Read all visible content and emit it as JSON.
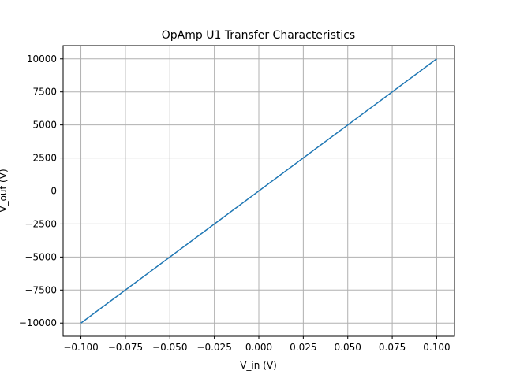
{
  "chart_data": {
    "type": "line",
    "title": "OpAmp U1 Transfer Characteristics",
    "xlabel": "V_in (V)",
    "ylabel": "V_out (V)",
    "xlim": [
      -0.11,
      0.11
    ],
    "ylim": [
      -11000,
      11000
    ],
    "x_ticks": [
      -0.1,
      -0.075,
      -0.05,
      -0.025,
      0.0,
      0.025,
      0.05,
      0.075,
      0.1
    ],
    "x_tick_labels": [
      "−0.100",
      "−0.075",
      "−0.050",
      "−0.025",
      "0.000",
      "0.025",
      "0.050",
      "0.075",
      "0.100"
    ],
    "y_ticks": [
      -10000,
      -7500,
      -5000,
      -2500,
      0,
      2500,
      5000,
      7500,
      10000
    ],
    "y_tick_labels": [
      "−10000",
      "−7500",
      "−5000",
      "−2500",
      "0",
      "2500",
      "5000",
      "7500",
      "10000"
    ],
    "grid": true,
    "series": [
      {
        "color": "#1f77b4",
        "x": [
          -0.1,
          0.1
        ],
        "y": [
          -10000,
          10000
        ]
      }
    ]
  }
}
